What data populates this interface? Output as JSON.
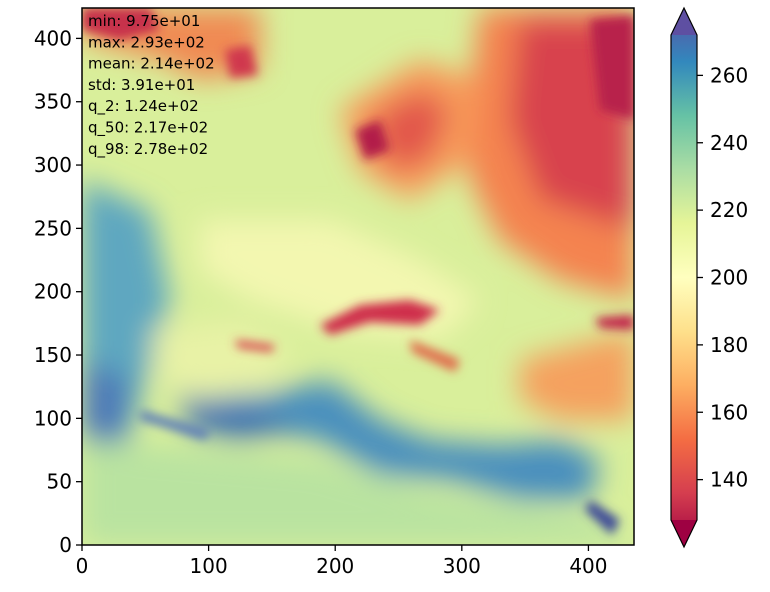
{
  "chart_data": {
    "type": "heatmap",
    "title": "",
    "xlabel": "",
    "ylabel": "",
    "xlim": [
      0,
      436
    ],
    "ylim": [
      0,
      424
    ],
    "x_ticks": [
      "0",
      "100",
      "200",
      "300",
      "400"
    ],
    "y_ticks": [
      "0",
      "50",
      "100",
      "150",
      "200",
      "250",
      "300",
      "350",
      "400"
    ],
    "colorbar": {
      "colormap": "Spectral",
      "range": [
        120,
        280
      ],
      "ticks": [
        "140",
        "160",
        "180",
        "200",
        "220",
        "240",
        "260"
      ],
      "extend": "both"
    },
    "stats": [
      "min: 9.75e+01",
      "max: 2.93e+02",
      "mean: 2.14e+02",
      "std: 3.91e+01",
      "q_2: 1.24e+02",
      "q_50: 2.17e+02",
      "q_98: 2.78e+02"
    ]
  }
}
